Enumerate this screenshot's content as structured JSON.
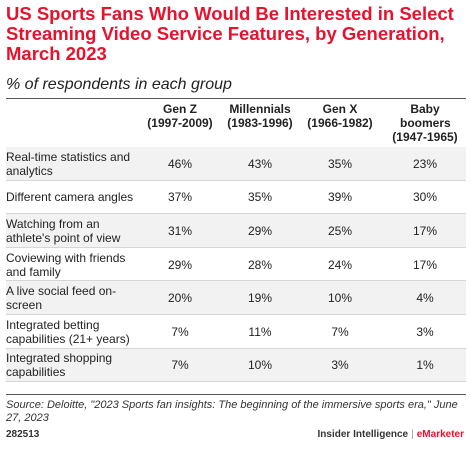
{
  "title": "US Sports Fans Who Would Be Interested in Select Streaming Video Service Features, by Generation, March 2023",
  "subtitle": "% of respondents in each group",
  "source": "Source: Deloitte, \"2023 Sports fan insights: The beginning of the immersive sports era,\" June 27, 2023",
  "chart_id": "282513",
  "brand": {
    "name": "Insider Intelligence",
    "separator": "|",
    "suffix": "eMarketer"
  },
  "chart_data": {
    "type": "table",
    "columns": [
      {
        "name": "Gen Z",
        "years": "(1997-2009)"
      },
      {
        "name": "Millennials",
        "years": "(1983-1996)"
      },
      {
        "name": "Gen X",
        "years": "(1966-1982)"
      },
      {
        "name": "Baby boomers",
        "years": "(1947-1965)"
      }
    ],
    "rows": [
      {
        "label": "Real-time statistics and analytics",
        "values": [
          "46%",
          "43%",
          "35%",
          "23%"
        ]
      },
      {
        "label": "Different camera angles",
        "values": [
          "37%",
          "35%",
          "39%",
          "30%"
        ]
      },
      {
        "label": "Watching from an athlete's point of view",
        "values": [
          "31%",
          "29%",
          "25%",
          "17%"
        ]
      },
      {
        "label": "Coviewing with friends and family",
        "values": [
          "29%",
          "28%",
          "24%",
          "17%"
        ]
      },
      {
        "label": "A live social feed on-screen",
        "values": [
          "20%",
          "19%",
          "10%",
          "4%"
        ]
      },
      {
        "label": "Integrated betting capabilities (21+ years)",
        "values": [
          "7%",
          "11%",
          "7%",
          "3%"
        ]
      },
      {
        "label": "Integrated shopping capabilities",
        "values": [
          "7%",
          "10%",
          "3%",
          "1%"
        ]
      }
    ]
  }
}
